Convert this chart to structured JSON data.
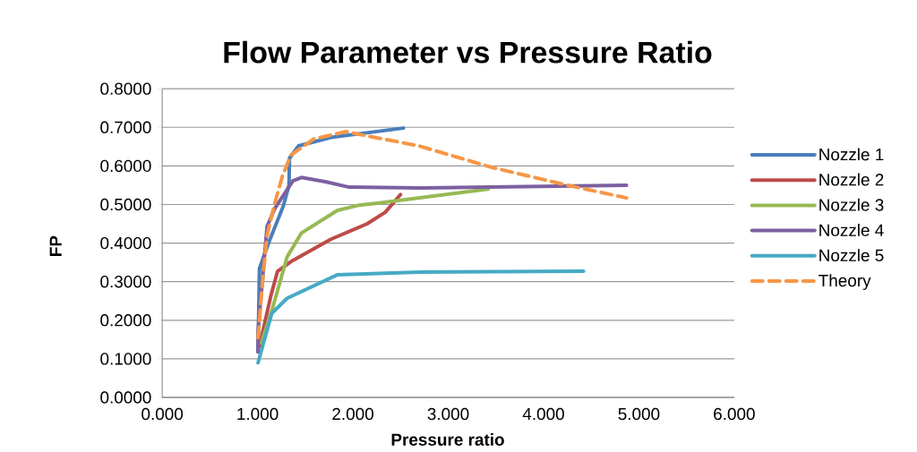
{
  "chart_data": {
    "type": "line",
    "title": "Flow Parameter vs Pressure Ratio",
    "xlabel": "Pressure ratio",
    "ylabel": "FP",
    "xlim": [
      0,
      6
    ],
    "ylim": [
      0,
      0.8
    ],
    "xticks": [
      {
        "value": 0,
        "label": "0.000"
      },
      {
        "value": 1,
        "label": "1.000"
      },
      {
        "value": 2,
        "label": "2.000"
      },
      {
        "value": 3,
        "label": "3.000"
      },
      {
        "value": 4,
        "label": "4.000"
      },
      {
        "value": 5,
        "label": "5.000"
      },
      {
        "value": 6,
        "label": "6.000"
      }
    ],
    "yticks": [
      {
        "value": 0,
        "label": "0.0000"
      },
      {
        "value": 0.1,
        "label": "0.1000"
      },
      {
        "value": 0.2,
        "label": "0.2000"
      },
      {
        "value": 0.3,
        "label": "0.3000"
      },
      {
        "value": 0.4,
        "label": "0.4000"
      },
      {
        "value": 0.5,
        "label": "0.5000"
      },
      {
        "value": 0.6,
        "label": "0.6000"
      },
      {
        "value": 0.7,
        "label": "0.7000"
      },
      {
        "value": 0.8,
        "label": "0.8000"
      }
    ],
    "grid": "y",
    "legend": "right",
    "marker": "none",
    "series": [
      {
        "name": "Nozzle 1",
        "color": "#4a7ebb",
        "line_style": "solid",
        "x": [
          1.005,
          1.02,
          1.12,
          1.27,
          1.33,
          1.335,
          1.43,
          1.77,
          2.53
        ],
        "values": [
          0.118,
          0.334,
          0.403,
          0.496,
          0.55,
          0.62,
          0.652,
          0.674,
          0.698
        ]
      },
      {
        "name": "Nozzle 2",
        "color": "#be4b48",
        "line_style": "solid",
        "x": [
          1.02,
          1.14,
          1.21,
          1.35,
          1.77,
          2.15,
          2.34,
          2.5
        ],
        "values": [
          0.132,
          0.264,
          0.327,
          0.352,
          0.41,
          0.45,
          0.48,
          0.526
        ]
      },
      {
        "name": "Nozzle 3",
        "color": "#98b954",
        "line_style": "solid",
        "x": [
          1.04,
          1.15,
          1.31,
          1.46,
          1.84,
          2.06,
          2.24,
          3.42
        ],
        "values": [
          0.141,
          0.225,
          0.364,
          0.426,
          0.485,
          0.498,
          0.503,
          0.54
        ]
      },
      {
        "name": "Nozzle 4",
        "color": "#7d60a0",
        "line_style": "solid",
        "x": [
          1.005,
          1.005,
          1.1,
          1.18,
          1.37,
          1.46,
          1.71,
          1.96,
          2.71,
          4.87
        ],
        "values": [
          0.118,
          0.172,
          0.443,
          0.489,
          0.561,
          0.57,
          0.559,
          0.545,
          0.543,
          0.55
        ]
      },
      {
        "name": "Nozzle 5",
        "color": "#46aac5",
        "line_style": "solid",
        "x": [
          1.005,
          1.15,
          1.31,
          1.84,
          2.71,
          4.42
        ],
        "values": [
          0.09,
          0.218,
          0.257,
          0.318,
          0.325,
          0.327
        ]
      },
      {
        "name": "Theory",
        "color": "#f79646",
        "line_style": "dashed",
        "x": [
          1.005,
          1.05,
          1.1,
          1.18,
          1.26,
          1.35,
          1.59,
          1.93,
          2.06,
          2.69,
          3.46,
          4.25,
          4.87
        ],
        "values": [
          0.155,
          0.294,
          0.42,
          0.503,
          0.573,
          0.628,
          0.67,
          0.689,
          0.682,
          0.652,
          0.596,
          0.55,
          0.517
        ]
      }
    ]
  }
}
